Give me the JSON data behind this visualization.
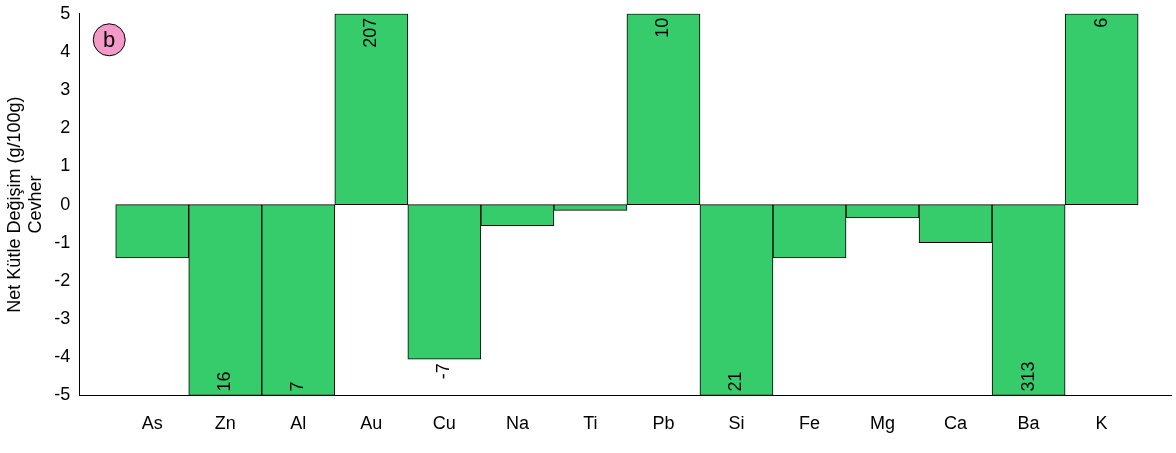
{
  "chart_data": {
    "type": "bar",
    "ylabel": "Net Kütle Değişim (g/100g)\nCevher",
    "categories": [
      "As",
      "Zn",
      "Al",
      "Au",
      "Cu",
      "Na",
      "Ti",
      "Pb",
      "Si",
      "Fe",
      "Mg",
      "Ca",
      "Ba",
      "K"
    ],
    "values": [
      -1.4,
      -5,
      -5,
      5,
      -4.05,
      -0.55,
      -0.15,
      5,
      -5,
      -1.4,
      -0.35,
      -1,
      -5,
      5
    ],
    "color": "#36cc6b",
    "ylim": [
      -5,
      5
    ],
    "yticks": [
      -5,
      -4,
      -3,
      -2,
      -1,
      0,
      1,
      2,
      3,
      4,
      5
    ],
    "grid": false,
    "legend": false,
    "annotations": [
      "b",
      {
        "text": "16",
        "x": "Zn",
        "y": -5
      },
      {
        "text": "7",
        "x": "Al",
        "y": -5
      },
      {
        "text": "207",
        "x": "Au",
        "y": 5
      },
      {
        "text": "-7",
        "x": "Cu",
        "y": -4.05
      },
      {
        "text": "10",
        "x": "Pb",
        "y": 5
      },
      {
        "text": "21",
        "x": "Si",
        "y": -5
      },
      {
        "text": "313",
        "x": "Ba",
        "y": -5
      },
      {
        "text": "6",
        "x": "K",
        "y": 5
      }
    ]
  }
}
